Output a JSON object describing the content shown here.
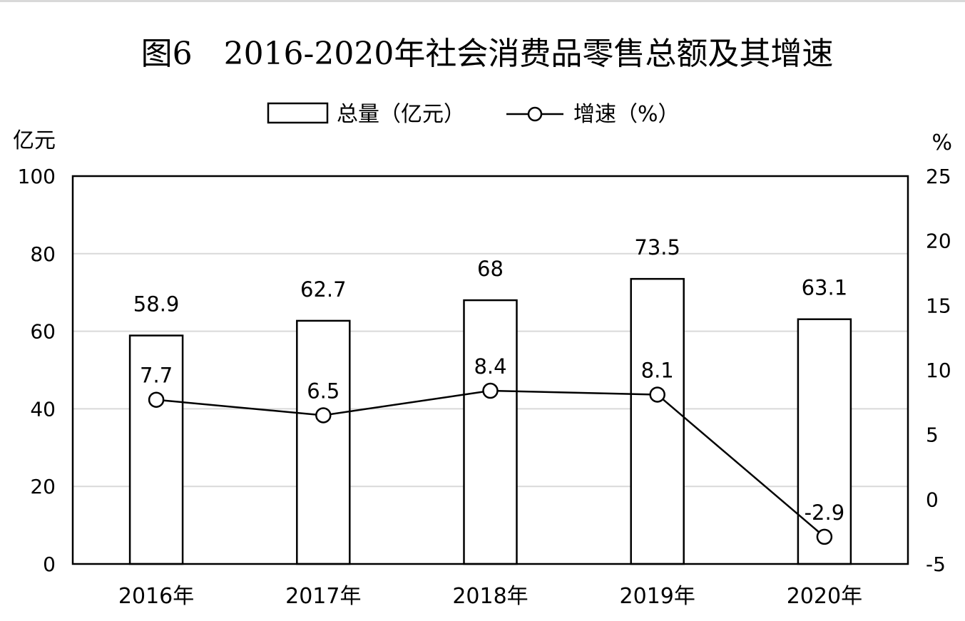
{
  "chart_data": {
    "type": "bar",
    "title": "图6　2016-2020年社会消费品零售总额及其增速",
    "categories": [
      "2016年",
      "2017年",
      "2018年",
      "2019年",
      "2020年"
    ],
    "series": [
      {
        "name": "总量（亿元）",
        "type": "bar",
        "axis": "left",
        "values": [
          58.9,
          62.7,
          68,
          73.5,
          63.1
        ],
        "labels": [
          "58.9",
          "62.7",
          "68",
          "73.5",
          "63.1"
        ]
      },
      {
        "name": "增速（%）",
        "type": "line",
        "axis": "right",
        "values": [
          7.7,
          6.5,
          8.4,
          8.1,
          -2.9
        ],
        "labels": [
          "7.7",
          "6.5",
          "8.4",
          "8.1",
          "-2.9"
        ]
      }
    ],
    "ylabel": "亿元",
    "y2label": "%",
    "ylim": [
      0,
      100
    ],
    "y2lim": [
      -5,
      25
    ],
    "yticks": [
      "0",
      "20",
      "40",
      "60",
      "80",
      "100"
    ],
    "y2ticks": [
      "-5",
      "0",
      "5",
      "10",
      "15",
      "20",
      "25"
    ],
    "grid": true,
    "legend_position": "top-center",
    "colors": {
      "bar_fill": "#ffffff",
      "bar_stroke": "#000000",
      "line": "#000000",
      "grid": "#d9d9d9"
    }
  }
}
